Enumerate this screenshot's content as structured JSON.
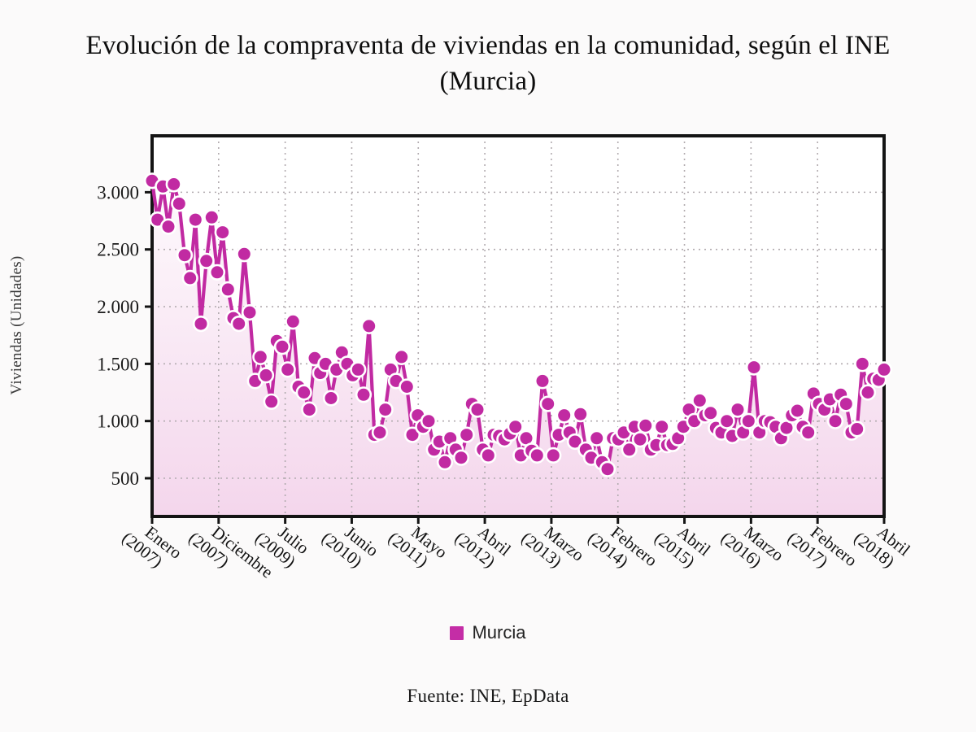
{
  "title": {
    "line1": "Evolución de la compraventa de viviendas en la comunidad, según el INE",
    "line2": "(Murcia)"
  },
  "y_axis": {
    "label": "Viviendas (Unidades)",
    "ticks": [
      {
        "value": 500,
        "label": "500"
      },
      {
        "value": 1000,
        "label": "1.000"
      },
      {
        "value": 1500,
        "label": "1.500"
      },
      {
        "value": 2000,
        "label": "2.000"
      },
      {
        "value": 2500,
        "label": "2.500"
      },
      {
        "value": 3000,
        "label": "3.000"
      }
    ]
  },
  "x_axis": {
    "ticks": [
      {
        "month": "Enero",
        "year": "(2007)"
      },
      {
        "month": "Diciembre",
        "year": "(2007)"
      },
      {
        "month": "Julio",
        "year": "(2009)"
      },
      {
        "month": "Junio",
        "year": "(2010)"
      },
      {
        "month": "Mayo",
        "year": "(2011)"
      },
      {
        "month": "Abril",
        "year": "(2012)"
      },
      {
        "month": "Marzo",
        "year": "(2013)"
      },
      {
        "month": "Febrero",
        "year": "(2014)"
      },
      {
        "month": "Abril",
        "year": "(2015)"
      },
      {
        "month": "Marzo",
        "year": "(2016)"
      },
      {
        "month": "Febrero",
        "year": "(2017)"
      },
      {
        "month": "Abril",
        "year": "(2018)"
      }
    ]
  },
  "legend": {
    "label": "Murcia",
    "swatch_color": "#c42da6"
  },
  "source": "Fuente: INE, EpData",
  "chart_data": {
    "type": "line",
    "title": "Evolución de la compraventa de viviendas en la comunidad, según el INE (Murcia)",
    "ylabel": "Viviendas (Unidades)",
    "x_unit": "month",
    "x_range": "Enero 2007 - Abril 2018",
    "x_tick_labels": [
      "Enero (2007)",
      "Diciembre (2007)",
      "Julio (2009)",
      "Junio (2010)",
      "Mayo (2011)",
      "Abril (2012)",
      "Marzo (2013)",
      "Febrero (2014)",
      "Abril (2015)",
      "Marzo (2016)",
      "Febrero (2017)",
      "Abril (2018)"
    ],
    "yticks": [
      500,
      1000,
      1500,
      2000,
      2500,
      3000
    ],
    "ylim": [
      160,
      3500
    ],
    "grid": "dashed",
    "legend_position": "bottom",
    "line_color": "#c12aa2",
    "marker": "circle-white-stroke",
    "area_fill_top": "#ffffff",
    "area_fill_bottom": "#f4d6ec",
    "series": [
      {
        "name": "Murcia",
        "values": [
          3100,
          2760,
          3050,
          2700,
          3070,
          2900,
          2450,
          2250,
          2760,
          1850,
          2400,
          2780,
          2300,
          2650,
          2150,
          1900,
          1850,
          2460,
          1950,
          1350,
          1560,
          1400,
          1170,
          1700,
          1650,
          1450,
          1870,
          1300,
          1250,
          1100,
          1550,
          1420,
          1500,
          1200,
          1450,
          1600,
          1500,
          1400,
          1450,
          1230,
          1830,
          880,
          900,
          1100,
          1450,
          1350,
          1560,
          1300,
          880,
          1050,
          950,
          1000,
          750,
          820,
          640,
          850,
          750,
          680,
          880,
          1150,
          1100,
          750,
          700,
          880,
          870,
          840,
          890,
          950,
          700,
          850,
          740,
          700,
          1350,
          1150,
          700,
          880,
          1050,
          900,
          820,
          1060,
          750,
          680,
          850,
          640,
          580,
          850,
          840,
          900,
          750,
          950,
          840,
          960,
          750,
          790,
          950,
          790,
          800,
          850,
          950,
          1100,
          1000,
          1180,
          1050,
          1070,
          940,
          900,
          1000,
          870,
          1100,
          900,
          1000,
          1470,
          900,
          1000,
          990,
          950,
          850,
          940,
          1050,
          1090,
          950,
          900,
          1240,
          1150,
          1100,
          1190,
          1000,
          1230,
          1150,
          900,
          930,
          1500,
          1250,
          1370,
          1360,
          1450
        ]
      }
    ]
  }
}
